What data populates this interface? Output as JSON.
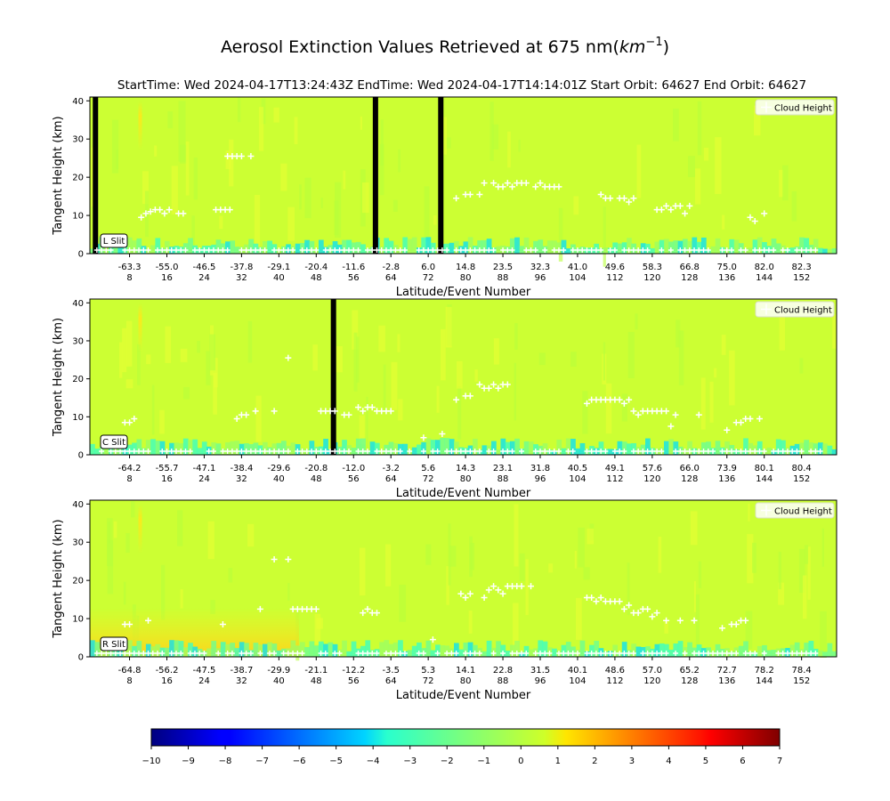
{
  "figure": {
    "title": "Aerosol Extinction Values Retrieved at 675 nm(",
    "title_unit_km": "km",
    "title_unit_exp": "−1",
    "title_close": ")",
    "subtitle": "StartTime: Wed 2024-04-17T13:24:43Z  EndTime: Wed 2024-04-17T14:14:01Z  Start Orbit: 64627 End Orbit: 64627"
  },
  "colors": {
    "background_field": "#ccff33",
    "cloud_marker": "#ffffff",
    "no_data": "#000000"
  },
  "colorbar": {
    "min": -10,
    "max": 7,
    "ticks": [
      "−10",
      "−9",
      "−8",
      "−7",
      "−6",
      "−5",
      "−4",
      "−3",
      "−2",
      "−1",
      "0",
      "1",
      "2",
      "3",
      "4",
      "5",
      "6",
      "7"
    ],
    "colormap": "jet"
  },
  "chart_data": [
    {
      "type": "heatmap",
      "slit": "L Slit",
      "xlabel": "Latitude/Event Number",
      "ylabel": "Tangent Height (km)",
      "ylim": [
        0,
        41
      ],
      "yticks": [
        "0",
        "10",
        "20",
        "30",
        "40"
      ],
      "event_range": [
        0,
        160
      ],
      "x_tick_events": [
        8,
        16,
        24,
        32,
        40,
        48,
        56,
        64,
        72,
        80,
        88,
        96,
        104,
        112,
        120,
        128,
        136,
        144,
        152
      ],
      "x_tick_lats": [
        "-63.3",
        "-55.0",
        "-46.5",
        "-37.8",
        "-29.1",
        "-20.4",
        "-11.6",
        "-2.8",
        "6.0",
        "14.8",
        "23.5",
        "32.3",
        "41.0",
        "49.6",
        "58.3",
        "66.8",
        "75.0",
        "82.0",
        "82.3"
      ],
      "x_tick_nums": [
        "8",
        "16",
        "24",
        "32",
        "40",
        "48",
        "56",
        "64",
        "72",
        "80",
        "88",
        "96",
        "104",
        "112",
        "120",
        "128",
        "136",
        "144",
        "152"
      ],
      "legend_label": "Cloud Height",
      "no_data_events": [
        1,
        61,
        75
      ],
      "cloud_heights": [
        [
          10.5,
          9.5
        ],
        [
          11.5,
          10.5
        ],
        [
          12.5,
          11
        ],
        [
          13.5,
          11.5
        ],
        [
          14.5,
          11.5
        ],
        [
          15.5,
          10.5
        ],
        [
          16.5,
          11.5
        ],
        [
          18.5,
          10.5
        ],
        [
          19.5,
          10.5
        ],
        [
          26.5,
          11.5
        ],
        [
          27.5,
          11.5
        ],
        [
          28.5,
          11.5
        ],
        [
          29.5,
          11.5
        ],
        [
          29,
          25.5
        ],
        [
          30,
          25.5
        ],
        [
          31,
          25.5
        ],
        [
          32,
          25.5
        ],
        [
          34,
          25.5
        ],
        [
          78,
          14.5
        ],
        [
          80,
          15.5
        ],
        [
          81,
          15.5
        ],
        [
          83,
          15.5
        ],
        [
          84,
          18.5
        ],
        [
          86,
          18.5
        ],
        [
          87,
          17.5
        ],
        [
          88,
          17.5
        ],
        [
          89,
          18.5
        ],
        [
          90,
          17.5
        ],
        [
          91,
          18.5
        ],
        [
          92,
          18.5
        ],
        [
          93,
          18.5
        ],
        [
          95,
          17.5
        ],
        [
          96,
          18.5
        ],
        [
          97,
          17.5
        ],
        [
          98,
          17.5
        ],
        [
          99,
          17.5
        ],
        [
          100,
          17.5
        ],
        [
          109,
          15.5
        ],
        [
          110,
          14.5
        ],
        [
          111,
          14.5
        ],
        [
          113,
          14.5
        ],
        [
          114,
          14.5
        ],
        [
          115,
          13.5
        ],
        [
          116,
          14.5
        ],
        [
          121,
          11.5
        ],
        [
          122,
          11.5
        ],
        [
          123,
          12.5
        ],
        [
          124,
          11.5
        ],
        [
          125,
          12.5
        ],
        [
          126,
          12.5
        ],
        [
          127,
          10.5
        ],
        [
          128,
          12.5
        ],
        [
          141,
          9.5
        ],
        [
          142,
          8.5
        ],
        [
          144,
          10.5
        ]
      ]
    },
    {
      "type": "heatmap",
      "slit": "C Slit",
      "xlabel": "Latitude/Event Number",
      "ylabel": "Tangent Height (km)",
      "ylim": [
        0,
        41
      ],
      "yticks": [
        "0",
        "10",
        "20",
        "30",
        "40"
      ],
      "event_range": [
        0,
        160
      ],
      "x_tick_events": [
        8,
        16,
        24,
        32,
        40,
        48,
        56,
        64,
        72,
        80,
        88,
        96,
        104,
        112,
        120,
        128,
        136,
        144,
        152
      ],
      "x_tick_lats": [
        "-64.2",
        "-55.7",
        "-47.1",
        "-38.4",
        "-29.6",
        "-20.8",
        "-12.0",
        "-3.2",
        "5.6",
        "14.3",
        "23.1",
        "31.8",
        "40.5",
        "49.1",
        "57.6",
        "66.0",
        "73.9",
        "80.1",
        "80.4"
      ],
      "x_tick_nums": [
        "8",
        "16",
        "24",
        "32",
        "40",
        "48",
        "56",
        "64",
        "72",
        "80",
        "88",
        "96",
        "104",
        "112",
        "120",
        "128",
        "136",
        "144",
        "152"
      ],
      "legend_label": "Cloud Height",
      "no_data_events": [
        52
      ],
      "cloud_heights": [
        [
          7,
          8.5
        ],
        [
          8,
          8.5
        ],
        [
          9,
          9.5
        ],
        [
          31,
          9.5
        ],
        [
          32,
          10.5
        ],
        [
          33,
          10.5
        ],
        [
          35,
          11.5
        ],
        [
          39,
          11.5
        ],
        [
          42,
          25.5
        ],
        [
          49,
          11.5
        ],
        [
          50,
          11.5
        ],
        [
          51,
          11.5
        ],
        [
          52,
          11.5
        ],
        [
          54,
          10.5
        ],
        [
          55,
          10.5
        ],
        [
          57,
          12.5
        ],
        [
          58,
          11.5
        ],
        [
          59,
          12.5
        ],
        [
          60,
          12.5
        ],
        [
          61,
          11.5
        ],
        [
          62,
          11.5
        ],
        [
          63,
          11.5
        ],
        [
          64,
          11.5
        ],
        [
          71,
          4.5
        ],
        [
          75,
          5.5
        ],
        [
          78,
          14.5
        ],
        [
          80,
          15.5
        ],
        [
          81,
          15.5
        ],
        [
          83,
          18.5
        ],
        [
          84,
          17.5
        ],
        [
          85,
          17.5
        ],
        [
          86,
          18.5
        ],
        [
          87,
          17.5
        ],
        [
          88,
          18.5
        ],
        [
          89,
          18.5
        ],
        [
          106,
          13.5
        ],
        [
          107,
          14.5
        ],
        [
          108,
          14.5
        ],
        [
          109,
          14.5
        ],
        [
          110,
          14.5
        ],
        [
          111,
          14.5
        ],
        [
          112,
          14.5
        ],
        [
          113,
          14.5
        ],
        [
          114,
          13.5
        ],
        [
          115,
          14.5
        ],
        [
          116,
          11.5
        ],
        [
          117,
          10.5
        ],
        [
          118,
          11.5
        ],
        [
          119,
          11.5
        ],
        [
          120,
          11.5
        ],
        [
          121,
          11.5
        ],
        [
          122,
          11.5
        ],
        [
          123,
          11.5
        ],
        [
          124,
          7.5
        ],
        [
          125,
          10.5
        ],
        [
          130,
          10.5
        ],
        [
          136,
          6.5
        ],
        [
          138,
          8.5
        ],
        [
          139,
          8.5
        ],
        [
          140,
          9.5
        ],
        [
          141,
          9.5
        ],
        [
          143,
          9.5
        ]
      ]
    },
    {
      "type": "heatmap",
      "slit": "R Slit",
      "xlabel": "Latitude/Event Number",
      "ylabel": "Tangent Height (km)",
      "ylim": [
        0,
        41
      ],
      "yticks": [
        "0",
        "10",
        "20",
        "30",
        "40"
      ],
      "event_range": [
        0,
        160
      ],
      "x_tick_events": [
        8,
        16,
        24,
        32,
        40,
        48,
        56,
        64,
        72,
        80,
        88,
        96,
        104,
        112,
        120,
        128,
        136,
        144,
        152
      ],
      "x_tick_lats": [
        "-64.8",
        "-56.2",
        "-47.5",
        "-38.7",
        "-29.9",
        "-21.1",
        "-12.2",
        "-3.5",
        "5.3",
        "14.1",
        "22.8",
        "31.5",
        "40.1",
        "48.6",
        "57.0",
        "65.2",
        "72.7",
        "78.2",
        "78.4"
      ],
      "x_tick_nums": [
        "8",
        "16",
        "24",
        "32",
        "40",
        "48",
        "56",
        "64",
        "72",
        "80",
        "88",
        "96",
        "104",
        "112",
        "120",
        "128",
        "136",
        "144",
        "152"
      ],
      "legend_label": "Cloud Height",
      "no_data_events": [],
      "cloud_heights": [
        [
          7,
          8.5
        ],
        [
          8,
          8.5
        ],
        [
          12,
          9.5
        ],
        [
          28,
          8.5
        ],
        [
          36,
          12.5
        ],
        [
          39,
          25.5
        ],
        [
          42,
          25.5
        ],
        [
          43,
          12.5
        ],
        [
          44,
          12.5
        ],
        [
          45,
          12.5
        ],
        [
          46,
          12.5
        ],
        [
          47,
          12.5
        ],
        [
          48,
          12.5
        ],
        [
          58,
          11.5
        ],
        [
          59,
          12.5
        ],
        [
          60,
          11.5
        ],
        [
          61,
          11.5
        ],
        [
          73,
          4.5
        ],
        [
          79,
          16.5
        ],
        [
          80,
          15.5
        ],
        [
          81,
          16.5
        ],
        [
          84,
          15.5
        ],
        [
          85,
          17.5
        ],
        [
          86,
          18.5
        ],
        [
          87,
          17.5
        ],
        [
          88,
          16.5
        ],
        [
          89,
          18.5
        ],
        [
          90,
          18.5
        ],
        [
          91,
          18.5
        ],
        [
          92,
          18.5
        ],
        [
          94,
          18.5
        ],
        [
          106,
          15.5
        ],
        [
          107,
          15.5
        ],
        [
          108,
          14.5
        ],
        [
          109,
          15.5
        ],
        [
          110,
          14.5
        ],
        [
          111,
          14.5
        ],
        [
          112,
          14.5
        ],
        [
          113,
          14.5
        ],
        [
          114,
          12.5
        ],
        [
          115,
          13.5
        ],
        [
          116,
          11.5
        ],
        [
          117,
          11.5
        ],
        [
          118,
          12.5
        ],
        [
          119,
          12.5
        ],
        [
          120,
          10.5
        ],
        [
          121,
          11.5
        ],
        [
          123,
          9.5
        ],
        [
          126,
          9.5
        ],
        [
          129,
          9.5
        ],
        [
          135,
          7.5
        ],
        [
          137,
          8.5
        ],
        [
          138,
          8.5
        ],
        [
          139,
          9.5
        ],
        [
          140,
          9.5
        ]
      ]
    }
  ]
}
